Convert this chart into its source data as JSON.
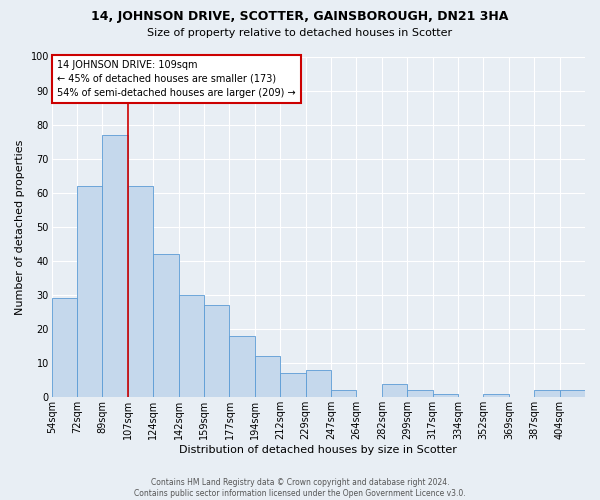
{
  "title": "14, JOHNSON DRIVE, SCOTTER, GAINSBOROUGH, DN21 3HA",
  "subtitle": "Size of property relative to detached houses in Scotter",
  "xlabel": "Distribution of detached houses by size in Scotter",
  "ylabel": "Number of detached properties",
  "footer_line1": "Contains HM Land Registry data © Crown copyright and database right 2024.",
  "footer_line2": "Contains public sector information licensed under the Open Government Licence v3.0.",
  "bin_labels": [
    "54sqm",
    "72sqm",
    "89sqm",
    "107sqm",
    "124sqm",
    "142sqm",
    "159sqm",
    "177sqm",
    "194sqm",
    "212sqm",
    "229sqm",
    "247sqm",
    "264sqm",
    "282sqm",
    "299sqm",
    "317sqm",
    "334sqm",
    "352sqm",
    "369sqm",
    "387sqm",
    "404sqm"
  ],
  "bar_heights": [
    29,
    62,
    77,
    62,
    42,
    30,
    27,
    18,
    12,
    7,
    8,
    2,
    0,
    4,
    2,
    1,
    0,
    1,
    0,
    2,
    2
  ],
  "property_line_x": 3,
  "property_sqm": 109,
  "annotation_title": "14 JOHNSON DRIVE: 109sqm",
  "annotation_line1": "← 45% of detached houses are smaller (173)",
  "annotation_line2": "54% of semi-detached houses are larger (209) →",
  "bar_color": "#c5d8ec",
  "bar_edge_color": "#5b9bd5",
  "line_color": "#cc0000",
  "annotation_box_edge_color": "#cc0000",
  "background_color": "#e8eef4",
  "grid_color": "#ffffff",
  "ylim": [
    0,
    100
  ],
  "yticks": [
    0,
    10,
    20,
    30,
    40,
    50,
    60,
    70,
    80,
    90,
    100
  ],
  "title_fontsize": 9,
  "subtitle_fontsize": 8,
  "xlabel_fontsize": 8,
  "ylabel_fontsize": 8,
  "tick_fontsize": 7,
  "annotation_fontsize": 7,
  "footer_fontsize": 5.5
}
